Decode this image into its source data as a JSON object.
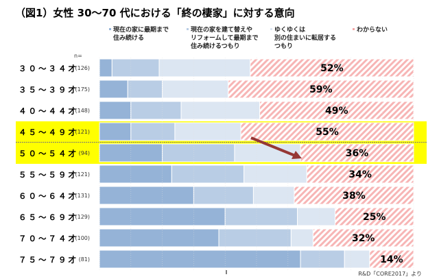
{
  "chart_data": {
    "type": "bar",
    "orientation": "horizontal-stacked-100",
    "title": "（図1）女性 30〜70 代における「終の棲家」に対する意向",
    "n_label": "n=",
    "source": "R&D「CORE2017」より",
    "categories": [
      "３０～３４才",
      "３５～３９才",
      "４０～４４才",
      "４５～４９才",
      "５０～５４才",
      "５５～５９才",
      "６０～６４才",
      "６５～６９才",
      "７０～７４才",
      "７５～７９才"
    ],
    "n_values": [
      "(126)",
      "(175)",
      "(148)",
      "(121)",
      "(94)",
      "(121)",
      "(131)",
      "(129)",
      "(100)",
      "(81)"
    ],
    "highlighted_categories": [
      "４５～４９才",
      "５０～５４才"
    ],
    "series": [
      {
        "name": "現在の家に最期まで住み続ける",
        "legend_lines": [
          "現在の家に最期まで",
          "住み続ける"
        ],
        "color": "#95b3d7",
        "values": [
          4,
          9,
          10,
          10,
          20,
          23,
          30,
          40,
          38,
          64
        ]
      },
      {
        "name": "現在の家を建て替えやリフォームして最期まで住み続けるつもり",
        "legend_lines": [
          "現在の家を建て替えや",
          "リフォームして最期まで",
          "住み続けるつもり"
        ],
        "color": "#b9cde5",
        "values": [
          15,
          11,
          16,
          14,
          23,
          23,
          19,
          23,
          23,
          14
        ]
      },
      {
        "name": "ゆくゆくは別の住まいに転居するつもり",
        "legend_lines": [
          "ゆくゆくは",
          "別の住まいに転居する",
          "つもり"
        ],
        "color": "#dce6f2",
        "values": [
          29,
          21,
          25,
          21,
          21,
          20,
          13,
          12,
          7,
          8
        ]
      },
      {
        "name": "わからない",
        "legend_lines": [
          "わからない"
        ],
        "color": "#f4a6a6",
        "pattern": "hatched",
        "values": [
          52,
          59,
          49,
          55,
          36,
          34,
          38,
          25,
          32,
          14
        ]
      }
    ],
    "data_labels": [
      "52%",
      "59%",
      "49%",
      "55%",
      "36%",
      "34%",
      "38%",
      "25%",
      "32%",
      "14%"
    ],
    "xlim": [
      0,
      100
    ],
    "grid": true,
    "legend_position": "top",
    "annotation": "arrow from 45~49 to 50~54 'わからない' segment"
  }
}
